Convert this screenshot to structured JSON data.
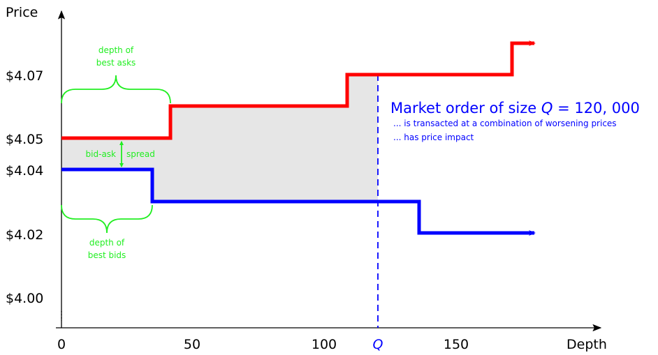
{
  "axes": {
    "y_label": "Price",
    "x_label": "Depth",
    "y_ticks": [
      "$4.07",
      "$4.05",
      "$4.04",
      "$4.02",
      "$4.00"
    ],
    "x_ticks": [
      "0",
      "50",
      "100",
      "150"
    ],
    "q_tick": "Q"
  },
  "annotations": {
    "best_asks_line1": "depth of",
    "best_asks_line2": "best asks",
    "best_bids_line1": "depth of",
    "best_bids_line2": "best bids",
    "spread_left": "bid-ask",
    "spread_right": "spread"
  },
  "market_order": {
    "title_prefix": "Market order of size ",
    "title_var": "Q",
    "title_suffix": " = 120, 000",
    "line1": "... is transacted at a combination of worsening prices",
    "line2": "... has price impact"
  },
  "colors": {
    "ask": "#ff0000",
    "bid": "#0000ff",
    "annotation": "#22ee22",
    "impact_fill": "#e6e6e6",
    "axis": "#000000"
  },
  "chart_data": {
    "type": "line",
    "series": [
      {
        "name": "asks",
        "points": [
          [
            0,
            4.05
          ],
          [
            42,
            4.05
          ],
          [
            42,
            4.06
          ],
          [
            111,
            4.06
          ],
          [
            111,
            4.07
          ],
          [
            175,
            4.07
          ],
          [
            175,
            4.08
          ]
        ]
      },
      {
        "name": "bids",
        "points": [
          [
            0,
            4.04
          ],
          [
            35,
            4.04
          ],
          [
            35,
            4.03
          ],
          [
            138,
            4.03
          ],
          [
            138,
            4.02
          ]
        ]
      }
    ],
    "q_value": 120,
    "order_size": 120000
  }
}
